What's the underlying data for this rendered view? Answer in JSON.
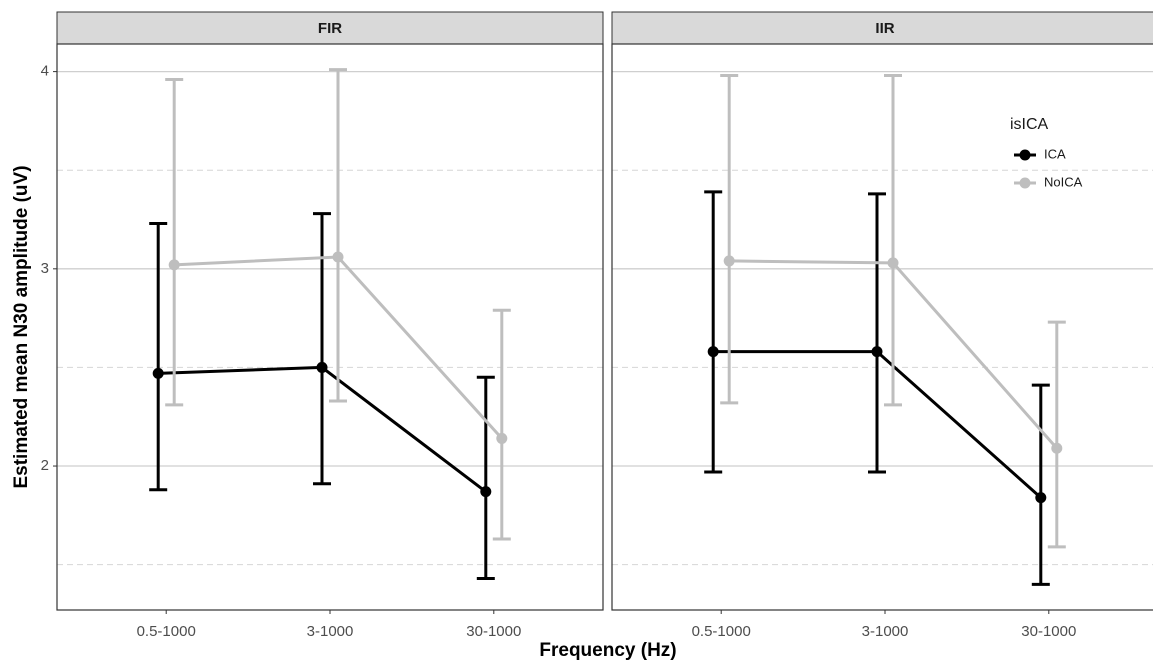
{
  "chart_data": {
    "type": "line",
    "x_label": "Frequency (Hz)",
    "y_label": "Estimated mean N30 amplitude (uV)",
    "legend_title": "isICA",
    "legend": "inside-top-right",
    "categories": [
      "0.5-1000",
      "3-1000",
      "30-1000"
    ],
    "ylim": [
      1.27,
      4.14
    ],
    "yticks": [
      2,
      3,
      4
    ],
    "minor_yticks": [
      1.5,
      2.5,
      3.5
    ],
    "grid": true,
    "panels": [
      {
        "title": "FIR",
        "series": [
          {
            "name": "ICA",
            "color": "#000000",
            "values": [
              2.47,
              2.5,
              1.87
            ],
            "lower": [
              1.88,
              1.91,
              1.43
            ],
            "upper": [
              3.23,
              3.28,
              2.45
            ]
          },
          {
            "name": "NoICA",
            "color": "#bebebe",
            "values": [
              3.02,
              3.06,
              2.14
            ],
            "lower": [
              2.31,
              2.33,
              1.63
            ],
            "upper": [
              3.96,
              4.01,
              2.79
            ]
          }
        ]
      },
      {
        "title": "IIR",
        "series": [
          {
            "name": "ICA",
            "color": "#000000",
            "values": [
              2.58,
              2.58,
              1.84
            ],
            "lower": [
              1.97,
              1.97,
              1.4
            ],
            "upper": [
              3.39,
              3.38,
              2.41
            ]
          },
          {
            "name": "NoICA",
            "color": "#bebebe",
            "values": [
              3.04,
              3.03,
              2.09
            ],
            "lower": [
              2.32,
              2.31,
              1.59
            ],
            "upper": [
              3.98,
              3.98,
              2.73
            ]
          }
        ]
      }
    ]
  }
}
